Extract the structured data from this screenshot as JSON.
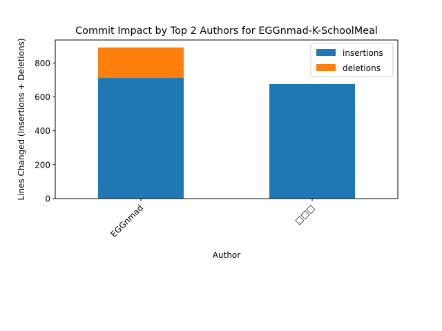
{
  "chart_data": {
    "type": "bar",
    "stacked": true,
    "title": "Commit Impact by Top 2 Authors for EGGnmad-K-SchoolMeal",
    "xlabel": "Author",
    "ylabel": "Lines Changed (Insertions + Deletions)",
    "categories": [
      "EGGnmad",
      "□□□"
    ],
    "series": [
      {
        "name": "insertions",
        "color": "#1f77b4",
        "values": [
          712,
          676
        ]
      },
      {
        "name": "deletions",
        "color": "#ff7f0e",
        "values": [
          180,
          0
        ]
      }
    ],
    "ylim": [
      0,
      936
    ],
    "yticks": [
      0,
      200,
      400,
      600,
      800
    ],
    "grid": false,
    "legend_position": "top-right"
  }
}
